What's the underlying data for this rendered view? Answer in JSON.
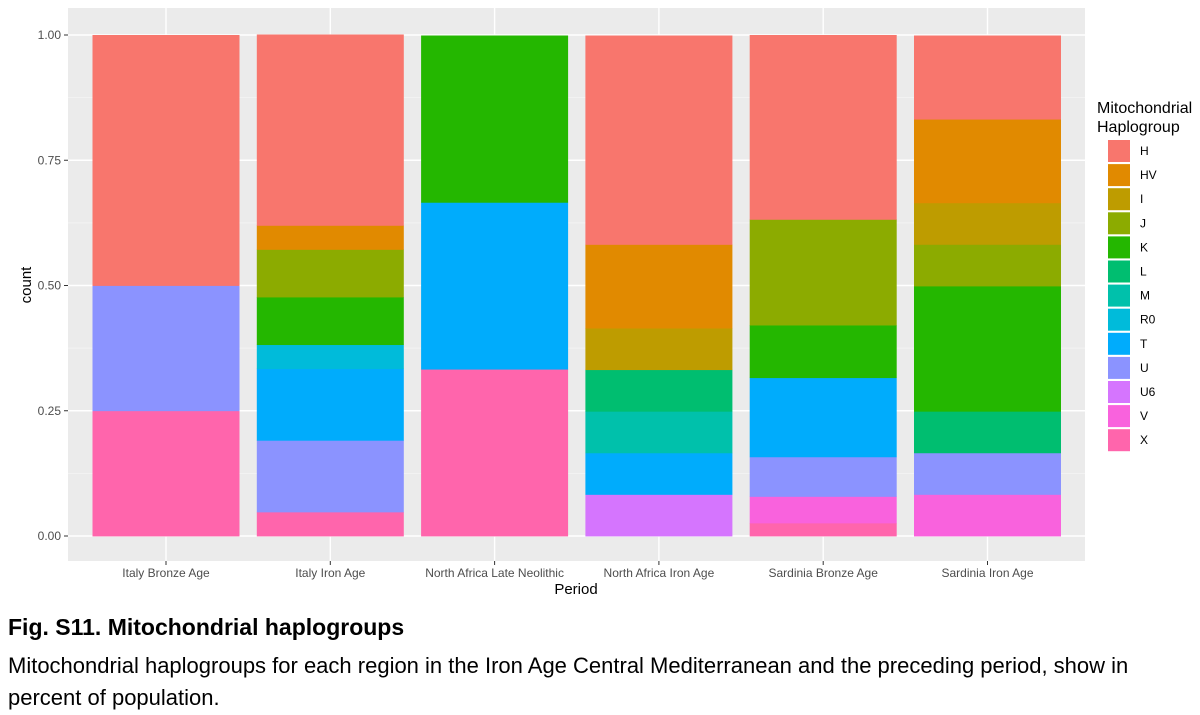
{
  "chart_data": {
    "type": "bar",
    "stacked": true,
    "xlabel": "Period",
    "ylabel": "count",
    "ylim": [
      0,
      1
    ],
    "yticks": [
      "0.00",
      "0.25",
      "0.50",
      "0.75",
      "1.00"
    ],
    "legend_title": [
      "Mitochondrial",
      "Haplogroup"
    ],
    "legend_position": "right",
    "categories": [
      "Italy Bronze Age",
      "Italy Iron Age",
      "North Africa Late Neolithic",
      "North Africa Iron Age",
      "Sardinia Bronze Age",
      "Sardinia Iron Age"
    ],
    "haplogroups": [
      {
        "name": "H",
        "color": "#F8766D"
      },
      {
        "name": "HV",
        "color": "#E18A00"
      },
      {
        "name": "I",
        "color": "#BE9C00"
      },
      {
        "name": "J",
        "color": "#8CAB00"
      },
      {
        "name": "K",
        "color": "#24B700"
      },
      {
        "name": "L",
        "color": "#00BE70"
      },
      {
        "name": "M",
        "color": "#00C1AB"
      },
      {
        "name": "R0",
        "color": "#00BBDA"
      },
      {
        "name": "T",
        "color": "#00ACFC"
      },
      {
        "name": "U",
        "color": "#8B93FF"
      },
      {
        "name": "U6",
        "color": "#D575FE"
      },
      {
        "name": "V",
        "color": "#F962DD"
      },
      {
        "name": "X",
        "color": "#FF65AC"
      }
    ],
    "series": [
      {
        "name": "H",
        "values": [
          0.5,
          0.381,
          0,
          0.417,
          0.368,
          0.167
        ]
      },
      {
        "name": "HV",
        "values": [
          0,
          0.048,
          0,
          0.167,
          0,
          0.167
        ]
      },
      {
        "name": "I",
        "values": [
          0,
          0,
          0,
          0.083,
          0,
          0.083
        ]
      },
      {
        "name": "J",
        "values": [
          0,
          0.095,
          0,
          0,
          0.211,
          0.083
        ]
      },
      {
        "name": "K",
        "values": [
          0,
          0.095,
          0.333,
          0,
          0.105,
          0.25
        ]
      },
      {
        "name": "L",
        "values": [
          0,
          0,
          0,
          0.083,
          0,
          0.083
        ]
      },
      {
        "name": "M",
        "values": [
          0,
          0,
          0,
          0.083,
          0,
          0
        ]
      },
      {
        "name": "R0",
        "values": [
          0,
          0.048,
          0,
          0,
          0,
          0
        ]
      },
      {
        "name": "T",
        "values": [
          0,
          0.143,
          0.333,
          0.083,
          0.158,
          0
        ]
      },
      {
        "name": "U",
        "values": [
          0.25,
          0.143,
          0,
          0,
          0.079,
          0.083
        ]
      },
      {
        "name": "U6",
        "values": [
          0,
          0,
          0,
          0.083,
          0,
          0
        ]
      },
      {
        "name": "V",
        "values": [
          0,
          0,
          0,
          0,
          0.053,
          0.083
        ]
      },
      {
        "name": "X",
        "values": [
          0.25,
          0.048,
          0.333,
          0,
          0.026,
          0
        ]
      }
    ]
  },
  "caption": {
    "title": "Fig. S11. Mitochondrial haplogroups",
    "text": "Mitochondrial haplogroups for each region in the Iron Age Central Mediterranean and the preceding period, show in percent of population."
  }
}
